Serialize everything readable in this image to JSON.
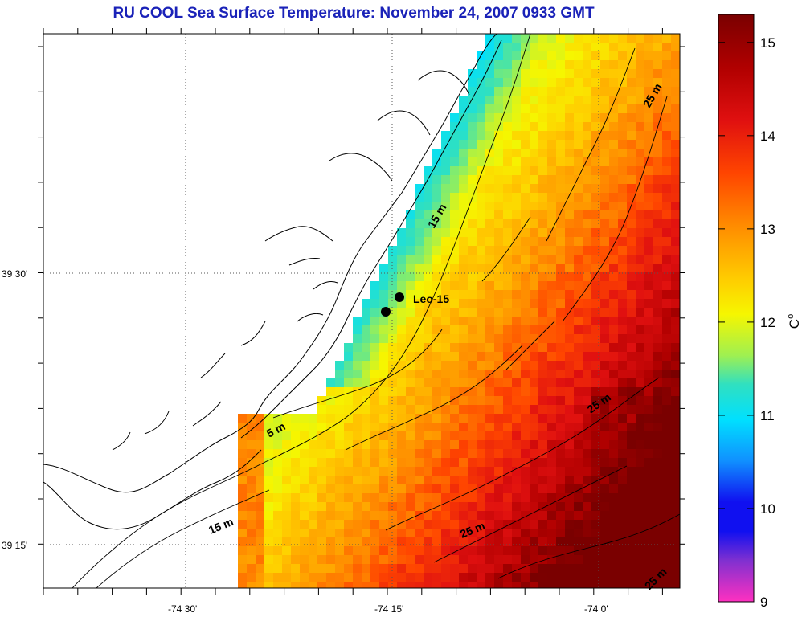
{
  "title": "RU COOL  Sea Surface Temperature:  November 24, 2007 0933 GMT",
  "axes": {
    "lat_labels": [
      "39 30'",
      "39 15'"
    ],
    "lon_labels": [
      "-74 30'",
      "-74 15'",
      "-74 0'"
    ]
  },
  "stations": [
    {
      "name": "Leo-15",
      "label": "Leo-15"
    }
  ],
  "contours": [
    "5 m",
    "15 m",
    "15 m",
    "25 m",
    "25 m",
    "25 m",
    "25 m"
  ],
  "colorbar": {
    "unit": "C",
    "unit_sup": "o",
    "min": 9,
    "max": 15.3,
    "ticks": [
      "15",
      "14",
      "13",
      "12",
      "11",
      "10",
      "9"
    ],
    "colors": [
      "#7a0000",
      "#b00000",
      "#e01010",
      "#ff4500",
      "#ff8c00",
      "#ffcc00",
      "#f6f600",
      "#a0f050",
      "#30e0c0",
      "#00e0ff",
      "#1090ff",
      "#1010f0",
      "#8030d0",
      "#ff30c0"
    ]
  }
}
